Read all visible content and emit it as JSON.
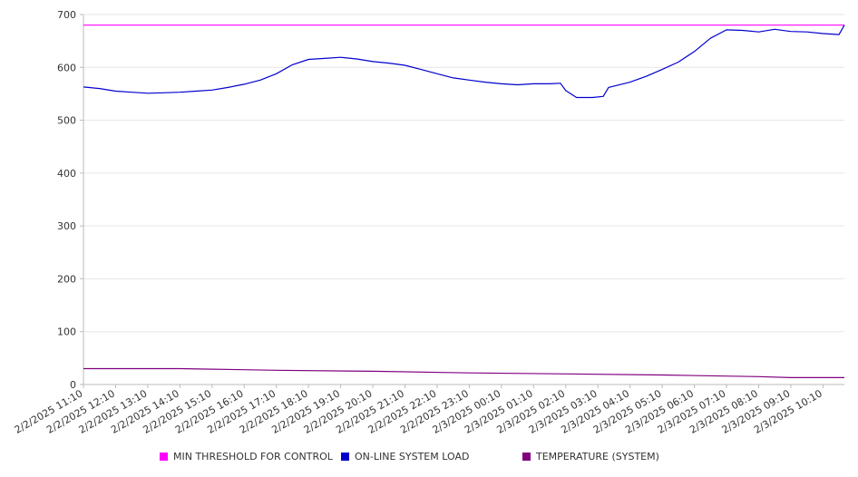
{
  "chart_data": {
    "type": "line",
    "ylim": [
      0,
      700
    ],
    "yticks": [
      0,
      100,
      200,
      300,
      400,
      500,
      600,
      700
    ],
    "grid": true,
    "legend_position": "bottom",
    "x_start": "2/2/2025 11:10",
    "x_end": "2/3/2025 10:50",
    "xtick_labels": [
      "2/2/2025 11:10",
      "2/2/2025 12:10",
      "2/2/2025 13:10",
      "2/2/2025 14:10",
      "2/2/2025 15:10",
      "2/2/2025 16:10",
      "2/2/2025 17:10",
      "2/2/2025 18:10",
      "2/2/2025 19:10",
      "2/2/2025 20:10",
      "2/2/2025 21:10",
      "2/2/2025 22:10",
      "2/2/2025 23:10",
      "2/3/2025 00:10",
      "2/3/2025 01:10",
      "2/3/2025 02:10",
      "2/3/2025 03:10",
      "2/3/2025 04:10",
      "2/3/2025 05:10",
      "2/3/2025 06:10",
      "2/3/2025 07:10",
      "2/3/2025 08:10",
      "2/3/2025 09:10",
      "2/3/2025 10:10"
    ],
    "series": [
      {
        "name": "MIN THRESHOLD FOR CONTROL",
        "color": "#ff00ff",
        "points": [
          [
            "2/2/2025 11:10",
            680
          ],
          [
            "2/3/2025 10:50",
            680
          ]
        ]
      },
      {
        "name": "ON-LINE SYSTEM LOAD",
        "color": "#0000cc",
        "points": [
          [
            "2/2/2025 11:10",
            563
          ],
          [
            "2/2/2025 11:40",
            560
          ],
          [
            "2/2/2025 12:10",
            555
          ],
          [
            "2/2/2025 12:40",
            553
          ],
          [
            "2/2/2025 13:10",
            551
          ],
          [
            "2/2/2025 13:40",
            552
          ],
          [
            "2/2/2025 14:10",
            553
          ],
          [
            "2/2/2025 14:40",
            555
          ],
          [
            "2/2/2025 15:10",
            557
          ],
          [
            "2/2/2025 15:40",
            562
          ],
          [
            "2/2/2025 16:10",
            568
          ],
          [
            "2/2/2025 16:40",
            576
          ],
          [
            "2/2/2025 17:10",
            588
          ],
          [
            "2/2/2025 17:40",
            605
          ],
          [
            "2/2/2025 18:10",
            615
          ],
          [
            "2/2/2025 18:40",
            617
          ],
          [
            "2/2/2025 19:10",
            619
          ],
          [
            "2/2/2025 19:40",
            616
          ],
          [
            "2/2/2025 20:10",
            611
          ],
          [
            "2/2/2025 20:40",
            608
          ],
          [
            "2/2/2025 21:10",
            604
          ],
          [
            "2/2/2025 21:40",
            596
          ],
          [
            "2/2/2025 22:10",
            588
          ],
          [
            "2/2/2025 22:40",
            580
          ],
          [
            "2/2/2025 23:10",
            576
          ],
          [
            "2/2/2025 23:40",
            572
          ],
          [
            "2/3/2025 00:10",
            569
          ],
          [
            "2/3/2025 00:40",
            567
          ],
          [
            "2/3/2025 01:10",
            569
          ],
          [
            "2/3/2025 01:40",
            569
          ],
          [
            "2/3/2025 02:00",
            570
          ],
          [
            "2/3/2025 02:10",
            556
          ],
          [
            "2/3/2025 02:30",
            543
          ],
          [
            "2/3/2025 03:00",
            543
          ],
          [
            "2/3/2025 03:20",
            545
          ],
          [
            "2/3/2025 03:30",
            562
          ],
          [
            "2/3/2025 04:10",
            572
          ],
          [
            "2/3/2025 04:40",
            583
          ],
          [
            "2/3/2025 05:10",
            596
          ],
          [
            "2/3/2025 05:40",
            610
          ],
          [
            "2/3/2025 06:10",
            630
          ],
          [
            "2/3/2025 06:40",
            655
          ],
          [
            "2/3/2025 07:10",
            671
          ],
          [
            "2/3/2025 07:40",
            670
          ],
          [
            "2/3/2025 08:10",
            667
          ],
          [
            "2/3/2025 08:40",
            672
          ],
          [
            "2/3/2025 09:10",
            668
          ],
          [
            "2/3/2025 09:40",
            667
          ],
          [
            "2/3/2025 10:10",
            664
          ],
          [
            "2/3/2025 10:40",
            662
          ],
          [
            "2/3/2025 10:50",
            680
          ]
        ]
      },
      {
        "name": "TEMPERATURE (SYSTEM)",
        "color": "#800080",
        "points": [
          [
            "2/2/2025 11:10",
            30
          ],
          [
            "2/2/2025 14:10",
            30
          ],
          [
            "2/2/2025 15:10",
            29
          ],
          [
            "2/2/2025 17:10",
            27
          ],
          [
            "2/2/2025 20:10",
            25
          ],
          [
            "2/2/2025 23:10",
            22
          ],
          [
            "2/3/2025 02:10",
            20
          ],
          [
            "2/3/2025 05:10",
            18
          ],
          [
            "2/3/2025 08:10",
            15
          ],
          [
            "2/3/2025 09:10",
            13
          ],
          [
            "2/3/2025 10:50",
            13
          ]
        ]
      }
    ]
  }
}
